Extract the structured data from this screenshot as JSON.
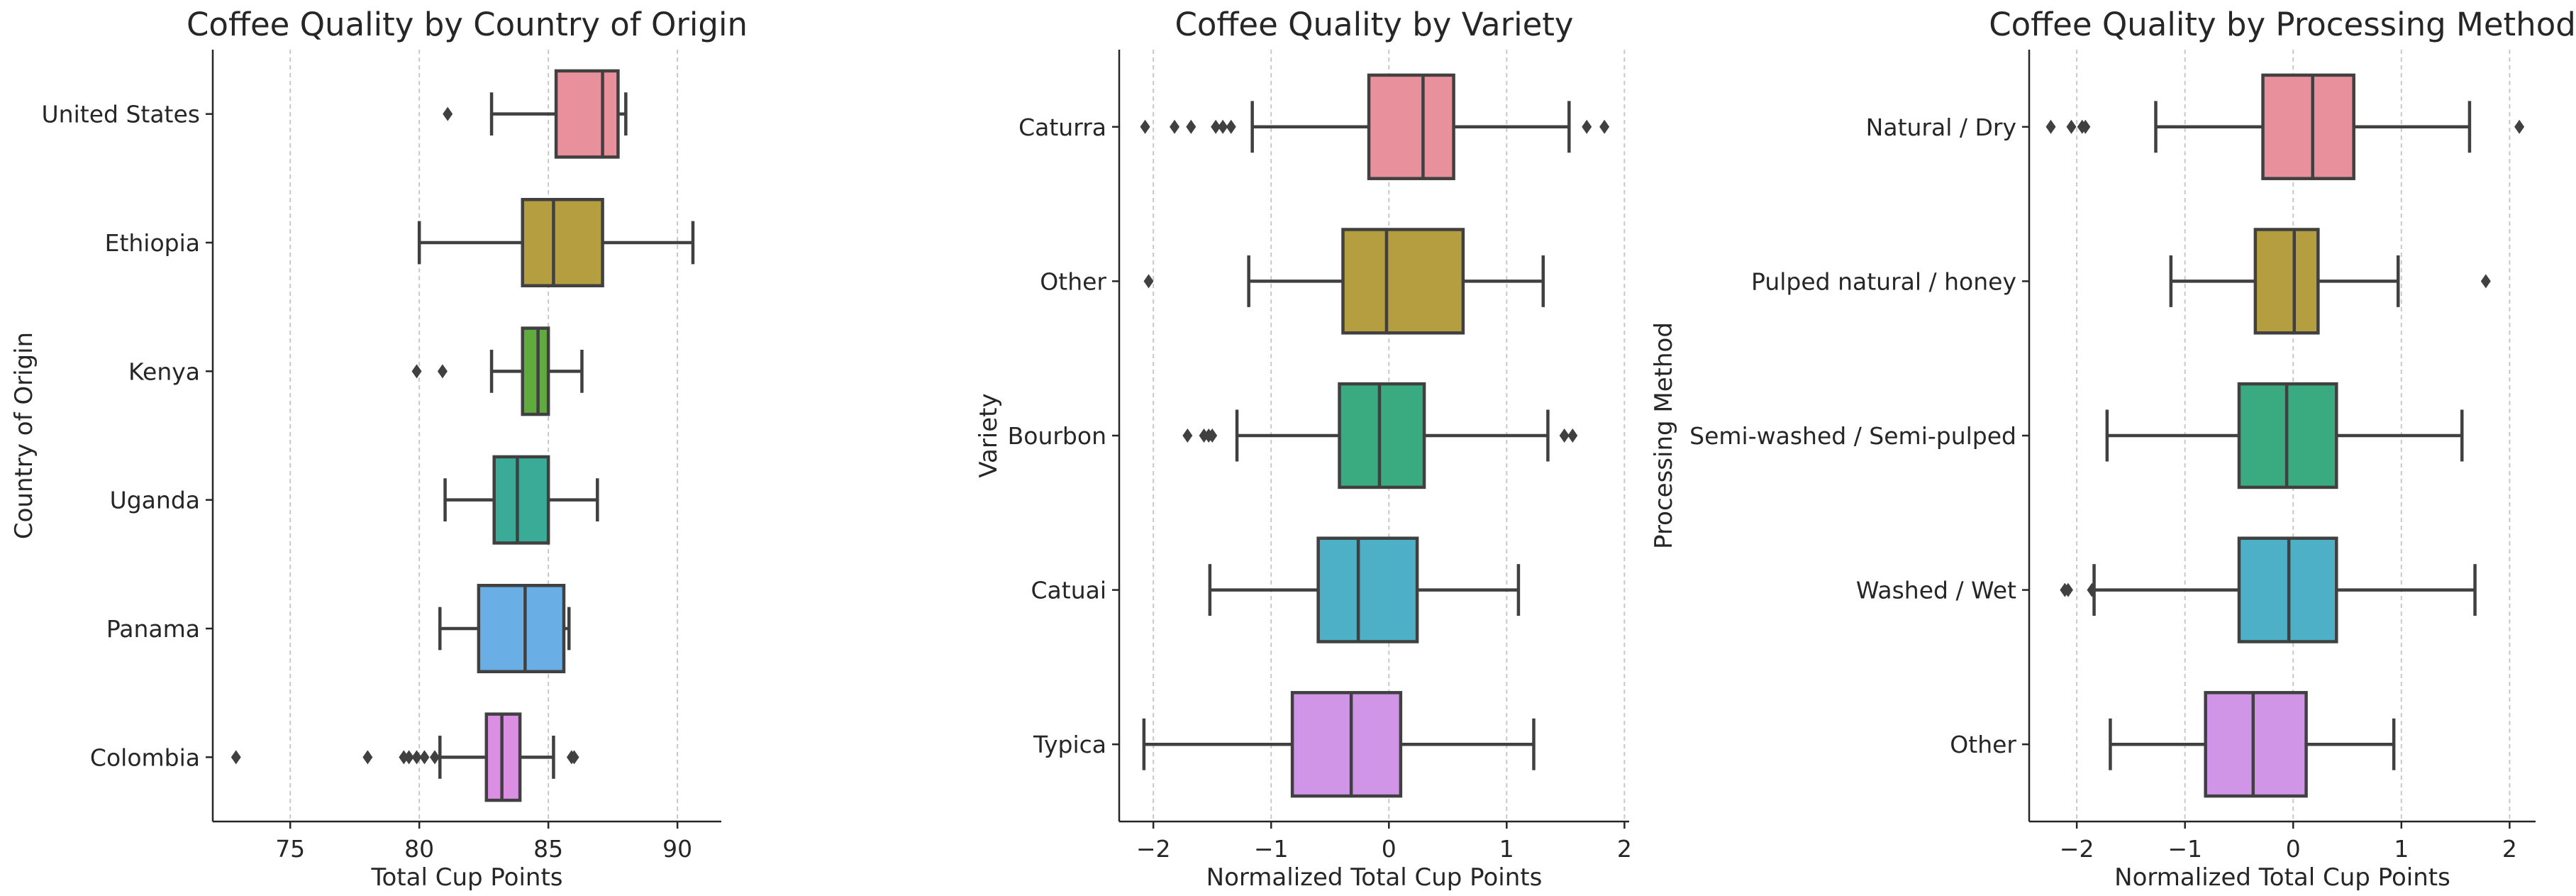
{
  "chart_data": [
    {
      "type": "box",
      "title": "Coffee Quality by Country of Origin",
      "xlabel": "Total Cup Points",
      "ylabel": "Country of Origin",
      "xlim": [
        72,
        91.7
      ],
      "xticks": [
        75,
        80,
        85,
        90
      ],
      "xtick_labels": [
        "75",
        "80",
        "85",
        "90"
      ],
      "grid_x": true,
      "categories": [
        "United States",
        "Ethiopia",
        "Kenya",
        "Uganda",
        "Panama",
        "Colombia"
      ],
      "boxes": [
        {
          "name": "United States",
          "whislo": 82.8,
          "q1": 85.3,
          "med": 87.1,
          "q3": 87.7,
          "whishi": 88.0,
          "fliers": [
            81.1
          ],
          "color": "#e8909c"
        },
        {
          "name": "Ethiopia",
          "whislo": 80.0,
          "q1": 84.0,
          "med": 85.2,
          "q3": 87.1,
          "whishi": 90.6,
          "fliers": [],
          "color": "#b59e40"
        },
        {
          "name": "Kenya",
          "whislo": 82.8,
          "q1": 84.0,
          "med": 84.6,
          "q3": 85.0,
          "whishi": 86.3,
          "fliers": [
            79.9,
            80.9
          ],
          "color": "#5fab3e"
        },
        {
          "name": "Uganda",
          "whislo": 81.0,
          "q1": 82.9,
          "med": 83.8,
          "q3": 85.0,
          "whishi": 86.9,
          "fliers": [],
          "color": "#3aab97"
        },
        {
          "name": "Panama",
          "whislo": 80.8,
          "q1": 82.3,
          "med": 84.1,
          "q3": 85.6,
          "whishi": 85.8,
          "fliers": [],
          "color": "#6aaee6"
        },
        {
          "name": "Colombia",
          "whislo": 80.8,
          "q1": 82.6,
          "med": 83.2,
          "q3": 83.9,
          "whishi": 85.2,
          "fliers": [
            72.9,
            78.0,
            79.4,
            79.6,
            79.9,
            80.2,
            80.6,
            85.9,
            86.0
          ],
          "color": "#db8fe3"
        }
      ]
    },
    {
      "type": "box",
      "title": "Coffee Quality by Variety",
      "xlabel": "Normalized Total Cup Points",
      "ylabel": "Variety",
      "xlim": [
        -2.29,
        2.04
      ],
      "xticks": [
        -2,
        -1,
        0,
        1,
        2
      ],
      "xtick_labels": [
        "−2",
        "−1",
        "0",
        "1",
        "2"
      ],
      "grid_x": true,
      "categories": [
        "Caturra",
        "Other",
        "Bourbon",
        "Catuai",
        "Typica"
      ],
      "boxes": [
        {
          "name": "Caturra",
          "whislo": -1.16,
          "q1": -0.17,
          "med": 0.29,
          "q3": 0.55,
          "whishi": 1.53,
          "fliers": [
            -2.07,
            -1.82,
            -1.68,
            -1.47,
            -1.41,
            -1.34,
            1.68,
            1.83
          ],
          "color": "#e8909c"
        },
        {
          "name": "Other",
          "whislo": -1.19,
          "q1": -0.39,
          "med": -0.02,
          "q3": 0.63,
          "whishi": 1.31,
          "fliers": [
            -2.04
          ],
          "color": "#b59e40"
        },
        {
          "name": "Bourbon",
          "whislo": -1.29,
          "q1": -0.42,
          "med": -0.08,
          "q3": 0.3,
          "whishi": 1.35,
          "fliers": [
            -1.71,
            -1.57,
            -1.53,
            -1.5,
            1.49,
            1.56
          ],
          "color": "#3aab80"
        },
        {
          "name": "Catuai",
          "whislo": -1.52,
          "q1": -0.6,
          "med": -0.26,
          "q3": 0.24,
          "whishi": 1.1,
          "fliers": [],
          "color": "#4eb0c6"
        },
        {
          "name": "Typica",
          "whislo": -2.08,
          "q1": -0.82,
          "med": -0.32,
          "q3": 0.1,
          "whishi": 1.23,
          "fliers": [],
          "color": "#d095e6"
        }
      ]
    },
    {
      "type": "box",
      "title": "Coffee Quality by Processing Method",
      "xlabel": "Normalized Total Cup Points",
      "ylabel": "Processing Method",
      "xlim": [
        -2.44,
        2.24
      ],
      "xticks": [
        -2,
        -1,
        0,
        1,
        2
      ],
      "xtick_labels": [
        "−2",
        "−1",
        "0",
        "1",
        "2"
      ],
      "grid_x": true,
      "categories": [
        "Natural / Dry",
        "Pulped natural / honey",
        "Semi-washed / Semi-pulped",
        "Washed / Wet",
        "Other"
      ],
      "boxes": [
        {
          "name": "Natural / Dry",
          "whislo": -1.27,
          "q1": -0.28,
          "med": 0.18,
          "q3": 0.56,
          "whishi": 1.63,
          "fliers": [
            -2.24,
            -2.05,
            -1.95,
            -1.92,
            2.09
          ],
          "color": "#e8909c"
        },
        {
          "name": "Pulped natural / honey",
          "whislo": -1.13,
          "q1": -0.35,
          "med": 0.01,
          "q3": 0.23,
          "whishi": 0.97,
          "fliers": [
            1.78
          ],
          "color": "#b59e40"
        },
        {
          "name": "Semi-washed / Semi-pulped",
          "whislo": -1.72,
          "q1": -0.5,
          "med": -0.06,
          "q3": 0.4,
          "whishi": 1.56,
          "fliers": [],
          "color": "#3aab80"
        },
        {
          "name": "Washed / Wet",
          "whislo": -1.84,
          "q1": -0.5,
          "med": -0.04,
          "q3": 0.4,
          "whishi": 1.68,
          "fliers": [
            -2.11,
            -2.08,
            -1.86
          ],
          "color": "#4eb0c6"
        },
        {
          "name": "Other",
          "whislo": -1.69,
          "q1": -0.81,
          "med": -0.37,
          "q3": 0.12,
          "whishi": 0.93,
          "fliers": [],
          "color": "#d095e6"
        }
      ]
    }
  ]
}
